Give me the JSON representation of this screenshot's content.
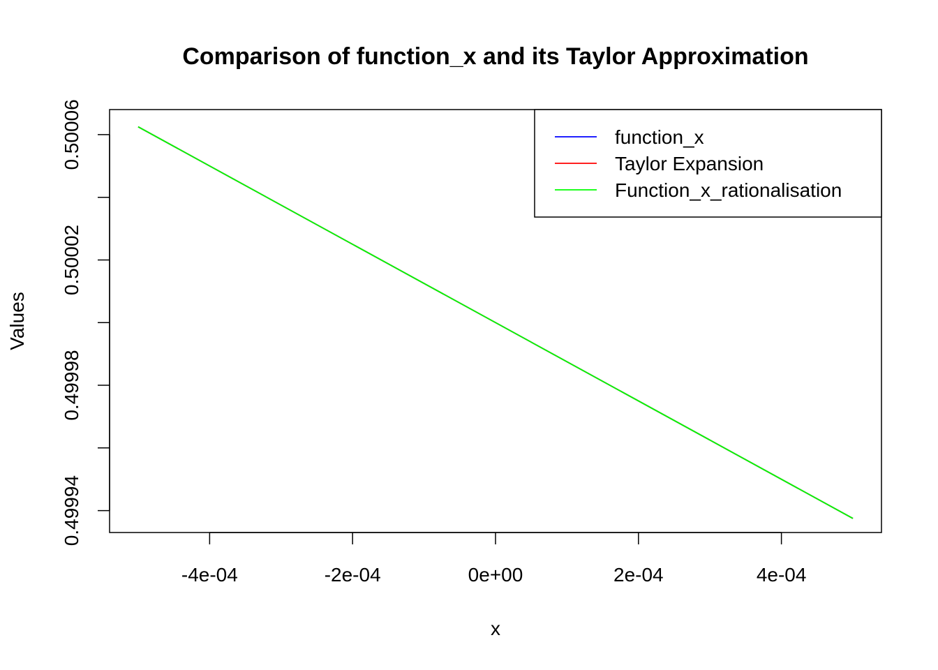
{
  "chart_data": {
    "type": "line",
    "title": "Comparison of function_x and its Taylor Approximation",
    "xlabel": "x",
    "ylabel": "Values",
    "xlim": [
      -0.00054,
      0.00054
    ],
    "ylim": [
      0.499933,
      0.500068
    ],
    "x_ticks": [
      -0.0004,
      -0.0002,
      0,
      0.0002,
      0.0004
    ],
    "x_tick_labels": [
      "-4e-04",
      "-2e-04",
      "0e+00",
      "2e-04",
      "4e-04"
    ],
    "y_ticks": [
      0.49994,
      0.49996,
      0.49998,
      0.5,
      0.50002,
      0.50004,
      0.50006
    ],
    "y_tick_labels": [
      "0.49994",
      "",
      "0.49998",
      "",
      "0.50002",
      "",
      "0.50006"
    ],
    "grid": false,
    "legend_position": "top-right",
    "series": [
      {
        "name": "function_x",
        "color": "#0000ff",
        "x": [
          -0.0005,
          0.0005
        ],
        "y": [
          0.5000625,
          0.4999375
        ]
      },
      {
        "name": "Taylor Expansion",
        "color": "#ff0000",
        "x": [
          -0.0005,
          0.0005
        ],
        "y": [
          0.5000625,
          0.4999375
        ]
      },
      {
        "name": "Function_x_rationalisation",
        "color": "#00ff00",
        "x": [
          -0.0005,
          0.0005
        ],
        "y": [
          0.5000625,
          0.4999375
        ]
      }
    ]
  }
}
